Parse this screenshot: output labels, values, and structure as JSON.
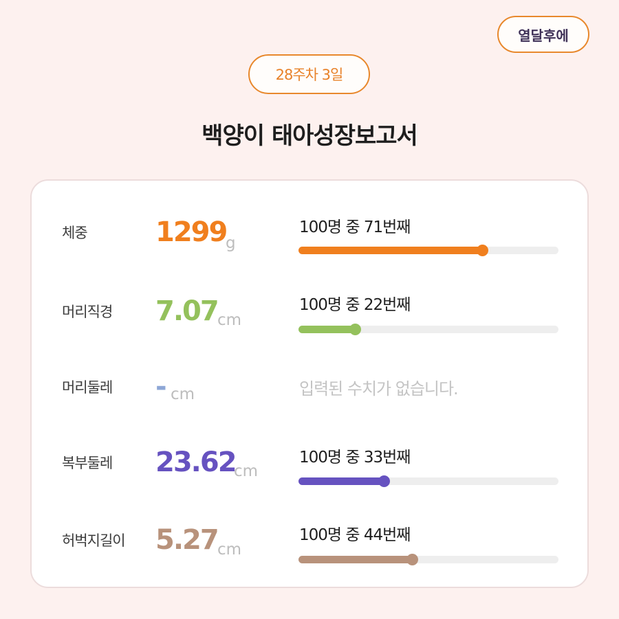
{
  "header": {
    "action_label": "열달후에",
    "week_badge": "28주차 3일",
    "title": "백양이 태아성장보고서"
  },
  "metrics": [
    {
      "label": "체중",
      "value": "1299",
      "unit": "g",
      "color": "#f07f1e",
      "rank_text": "100명 중 71번째",
      "rank": 71,
      "total": 100
    },
    {
      "label": "머리직경",
      "value": "7.07",
      "unit": "cm",
      "color": "#94c15c",
      "rank_text": "100명 중 22번째",
      "rank": 22,
      "total": 100
    },
    {
      "label": "머리둘레",
      "value": "-",
      "unit": "cm",
      "color": "#8ea7d6",
      "no_data_text": "입력된 수치가 없습니다."
    },
    {
      "label": "복부둘레",
      "value": "23.62",
      "unit": "cm",
      "color": "#6652c0",
      "rank_text": "100명 중 33번째",
      "rank": 33,
      "total": 100
    },
    {
      "label": "허벅지길이",
      "value": "5.27",
      "unit": "cm",
      "color": "#b8927b",
      "rank_text": "100명 중 44번째",
      "rank": 44,
      "total": 100
    }
  ]
}
